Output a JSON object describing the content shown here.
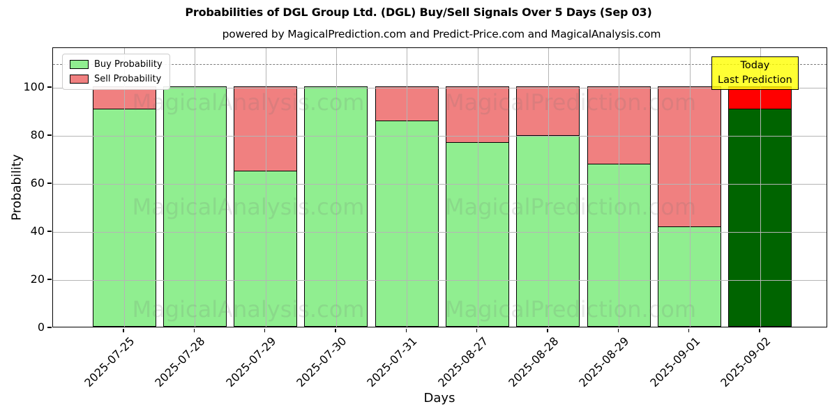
{
  "title": "Probabilities of DGL Group Ltd. (DGL) Buy/Sell Signals Over 5 Days (Sep 03)",
  "subtitle": "powered by MagicalPrediction.com and Predict-Price.com and MagicalAnalysis.com",
  "legend": {
    "buy": "Buy Probability",
    "sell": "Sell Probability"
  },
  "annotation": {
    "line1": "Today",
    "line2": "Last Prediction"
  },
  "axes": {
    "x_label": "Days",
    "y_label": "Probability",
    "y_ticks": [
      0,
      20,
      40,
      60,
      80,
      100
    ]
  },
  "watermarks": {
    "left": "MagicalAnalysis.com",
    "right": "MagicalPrediction.com"
  },
  "colors": {
    "buy": "#90ee90",
    "sell": "#f08080",
    "today_buy": "#006400",
    "today_sell": "#ff0000",
    "annotation_bg": "#ffff00",
    "grid": "#b5b5b5",
    "dashed_line": "#7a7a7a",
    "bar_edge": "#000000"
  },
  "chart_data": {
    "type": "bar",
    "stacked": true,
    "title": "Probabilities of DGL Group Ltd. (DGL) Buy/Sell Signals Over 5 Days (Sep 03)",
    "xlabel": "Days",
    "ylabel": "Probability",
    "categories": [
      "2025-07-25",
      "2025-07-28",
      "2025-07-29",
      "2025-07-30",
      "2025-07-31",
      "2025-08-27",
      "2025-08-28",
      "2025-08-29",
      "2025-09-01",
      "2025-09-02"
    ],
    "series": [
      {
        "name": "Buy Probability",
        "values": [
          91,
          100,
          65,
          100,
          86,
          77,
          80,
          68,
          42,
          91
        ]
      },
      {
        "name": "Sell Probability",
        "values": [
          9,
          0,
          35,
          0,
          14,
          23,
          20,
          32,
          58,
          9
        ]
      }
    ],
    "highlight_last_bar": true,
    "ylim": [
      0,
      116.5
    ],
    "dashed_line_y": 110,
    "grid": true,
    "legend_position": "upper-left"
  }
}
